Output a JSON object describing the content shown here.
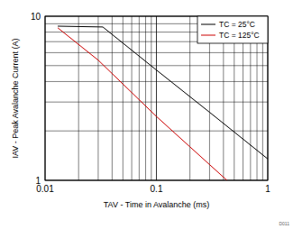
{
  "chart_data": {
    "type": "line",
    "x_label": "TAV - Time in Avalanche (ms)",
    "y_label": "IAV - Peak Avalanche Current (A)",
    "annotation": "D011",
    "series": [
      {
        "name": "TC = 25°C",
        "color": "#000000",
        "x": [
          0.013,
          0.033,
          0.1,
          0.3,
          1
        ],
        "values": [
          8.7,
          8.6,
          4.7,
          2.6,
          1.35
        ]
      },
      {
        "name": "TC = 125°C",
        "color": "#cc0000",
        "x": [
          0.013,
          0.03,
          0.1,
          0.2,
          0.43
        ],
        "values": [
          8.5,
          5.4,
          2.45,
          1.6,
          1
        ]
      }
    ],
    "xlim": [
      0.01,
      1
    ],
    "xticks": [
      0.01,
      0.1,
      1
    ],
    "ylim": [
      1,
      10
    ],
    "yticks": [
      1,
      10
    ],
    "log": true,
    "grid": true,
    "legend": "upper right"
  }
}
